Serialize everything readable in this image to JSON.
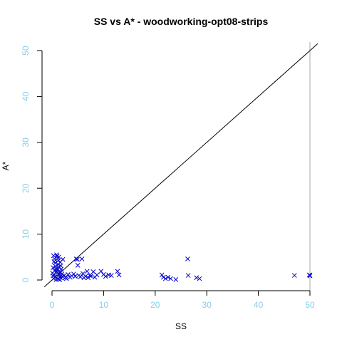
{
  "chart_data": {
    "type": "scatter",
    "title": "SS vs A* - woodworking-opt08-strips",
    "xlabel": "SS",
    "ylabel": "A*",
    "xlim": [
      0,
      50
    ],
    "ylim": [
      0,
      50
    ],
    "x_ticks": [
      "0",
      "10",
      "20",
      "30",
      "40",
      "50"
    ],
    "y_ticks": [
      "0",
      "10",
      "20",
      "30",
      "40",
      "50"
    ],
    "tick_color": "#87CEEB",
    "point_color": "#0000CC",
    "marker": "x",
    "grid": false,
    "reference_lines": [
      {
        "type": "diagonal",
        "label": "y = x",
        "color": "#000000"
      },
      {
        "type": "vertical",
        "x": 50,
        "color": "#AAAAAA"
      }
    ],
    "points": [
      [
        0.3,
        5.3
      ],
      [
        0.5,
        4.6
      ],
      [
        0.6,
        3.7
      ],
      [
        0.7,
        3.0
      ],
      [
        0.8,
        2.5
      ],
      [
        0.9,
        1.9
      ],
      [
        0.4,
        1.2
      ],
      [
        0.6,
        0.7
      ],
      [
        0.3,
        0.3
      ],
      [
        0.8,
        0.1
      ],
      [
        1.0,
        5.2
      ],
      [
        1.1,
        4.8
      ],
      [
        1.2,
        4.2
      ],
      [
        1.2,
        3.4
      ],
      [
        1.3,
        2.8
      ],
      [
        1.0,
        2.2
      ],
      [
        1.1,
        1.6
      ],
      [
        1.4,
        1.1
      ],
      [
        1.5,
        0.6
      ],
      [
        1.2,
        0.2
      ],
      [
        0.9,
        5.5
      ],
      [
        1.3,
        5.0
      ],
      [
        1.6,
        3.9
      ],
      [
        1.7,
        3.1
      ],
      [
        1.8,
        2.4
      ],
      [
        1.6,
        1.8
      ],
      [
        1.9,
        1.3
      ],
      [
        2.0,
        0.8
      ],
      [
        1.8,
        0.4
      ],
      [
        1.5,
        0.1
      ],
      [
        0.2,
        2.7
      ],
      [
        0.1,
        1.5
      ],
      [
        0.2,
        0.9
      ],
      [
        0.4,
        4.0
      ],
      [
        0.5,
        2.0
      ],
      [
        2.1,
        4.5
      ],
      [
        2.4,
        1.0
      ],
      [
        2.6,
        0.5
      ],
      [
        2.8,
        0.3
      ],
      [
        3.1,
        1.2
      ],
      [
        3.5,
        0.6
      ],
      [
        3.8,
        0.9
      ],
      [
        4.2,
        1.3
      ],
      [
        4.5,
        0.8
      ],
      [
        4.7,
        4.6
      ],
      [
        4.9,
        4.5
      ],
      [
        5.0,
        3.2
      ],
      [
        5.2,
        1.0
      ],
      [
        5.5,
        0.7
      ],
      [
        5.8,
        4.6
      ],
      [
        6.0,
        1.4
      ],
      [
        6.2,
        0.5
      ],
      [
        6.5,
        0.8
      ],
      [
        6.8,
        1.9
      ],
      [
        7.0,
        0.5
      ],
      [
        7.3,
        1.0
      ],
      [
        7.6,
        0.9
      ],
      [
        8.0,
        1.8
      ],
      [
        8.3,
        0.6
      ],
      [
        8.7,
        1.1
      ],
      [
        9.5,
        1.9
      ],
      [
        10.0,
        1.2
      ],
      [
        10.4,
        0.8
      ],
      [
        11.0,
        1.1
      ],
      [
        11.5,
        1.0
      ],
      [
        12.7,
        1.9
      ],
      [
        13.0,
        1.1
      ],
      [
        21.3,
        1.1
      ],
      [
        21.6,
        0.6
      ],
      [
        22.0,
        0.3
      ],
      [
        22.5,
        0.6
      ],
      [
        23.0,
        0.3
      ],
      [
        24.0,
        0.1
      ],
      [
        26.3,
        4.6
      ],
      [
        26.4,
        1.0
      ],
      [
        28.0,
        0.5
      ],
      [
        28.6,
        0.3
      ],
      [
        47.0,
        1.0
      ],
      [
        50.0,
        1.0
      ],
      [
        50.0,
        0.9
      ],
      [
        49.9,
        1.1
      ]
    ]
  }
}
